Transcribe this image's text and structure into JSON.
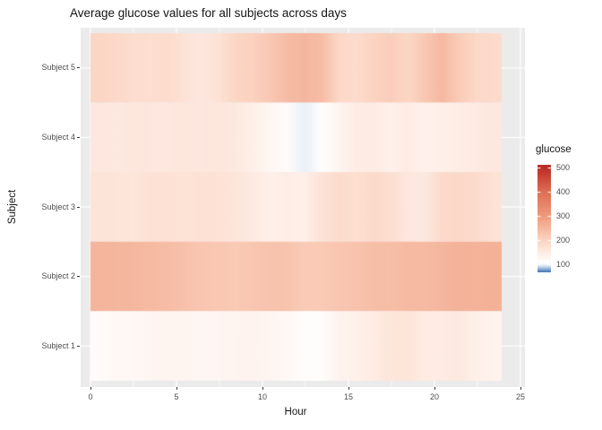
{
  "title": "Average glucose values for all subjects across days",
  "axes": {
    "x": {
      "label": "Hour",
      "ticks": [
        "0",
        "5",
        "10",
        "15",
        "20",
        "25"
      ],
      "tick_values": [
        0,
        5,
        10,
        15,
        20,
        25
      ],
      "minor_tick_values": [
        2.5,
        7.5,
        12.5,
        17.5,
        22.5
      ],
      "range": [
        0,
        25
      ]
    },
    "y": {
      "label": "Subject",
      "tick_labels_top_to_bottom": [
        "Subject 5",
        "Subject 4",
        "Subject 3",
        "Subject 2",
        "Subject 1"
      ]
    }
  },
  "legend": {
    "title": "glucose",
    "ticks": [
      "500",
      "400",
      "300",
      "200",
      "100"
    ],
    "tick_values": [
      500,
      400,
      300,
      200,
      100
    ],
    "bar_value_range": [
      65,
      510
    ]
  },
  "chart_data": {
    "type": "heatmap",
    "title": "Average glucose values for all subjects across days",
    "xlabel": "Hour",
    "ylabel": "Subject",
    "x_hours": [
      0,
      1,
      2,
      3,
      4,
      5,
      6,
      7,
      8,
      9,
      10,
      11,
      12,
      13,
      14,
      15,
      16,
      17,
      18,
      19,
      20,
      21,
      22,
      23
    ],
    "x_tile_span": [
      0,
      24
    ],
    "rows_top_to_bottom": [
      "Subject 5",
      "Subject 4",
      "Subject 3",
      "Subject 2",
      "Subject 1"
    ],
    "series": [
      {
        "name": "Subject 5",
        "values": [
          195,
          190,
          180,
          178,
          182,
          168,
          158,
          170,
          196,
          205,
          222,
          243,
          252,
          240,
          192,
          183,
          200,
          212,
          194,
          220,
          248,
          214,
          192,
          185
        ]
      },
      {
        "name": "Subject 4",
        "values": [
          158,
          155,
          160,
          158,
          156,
          160,
          158,
          162,
          155,
          140,
          125,
          115,
          98,
          110,
          128,
          148,
          150,
          138,
          148,
          136,
          140,
          146,
          152,
          158
        ]
      },
      {
        "name": "Subject 3",
        "values": [
          165,
          164,
          162,
          172,
          172,
          168,
          172,
          170,
          162,
          152,
          140,
          145,
          140,
          168,
          185,
          175,
          188,
          178,
          158,
          155,
          187,
          192,
          185,
          170
        ]
      },
      {
        "name": "Subject 2",
        "values": [
          255,
          252,
          250,
          245,
          240,
          232,
          225,
          220,
          218,
          224,
          230,
          228,
          215,
          218,
          225,
          230,
          238,
          237,
          245,
          244,
          252,
          258,
          257,
          260
        ]
      },
      {
        "name": "Subject 1",
        "values": [
          115,
          122,
          120,
          126,
          130,
          128,
          124,
          126,
          130,
          132,
          126,
          122,
          112,
          112,
          132,
          138,
          148,
          162,
          163,
          148,
          150,
          155,
          140,
          134
        ]
      }
    ],
    "color_scale": {
      "type": "diverging",
      "low": "#3E6CB0",
      "mid": "#FFFFFF",
      "high": "#BE2C26",
      "anchors": [
        [
          65,
          [
            62,
            108,
            176
          ]
        ],
        [
          75,
          [
            110,
            148,
            198
          ]
        ],
        [
          90,
          [
            200,
            218,
            236
          ]
        ],
        [
          100,
          [
            242,
            247,
            251
          ]
        ],
        [
          107,
          [
            255,
            255,
            255
          ]
        ],
        [
          200,
          [
            252,
            212,
            194
          ]
        ],
        [
          300,
          [
            239,
            154,
            124
          ]
        ],
        [
          400,
          [
            222,
            110,
            85
          ]
        ],
        [
          500,
          [
            190,
            44,
            38
          ]
        ]
      ],
      "legend_position": "right"
    },
    "panel_background": "#EBEBEB",
    "gridline_color": "#FFFFFF"
  },
  "colors": {
    "panel_bg": "#EBEBEB",
    "grid": "#FFFFFF",
    "tick_text": "#4D4D4D",
    "axis_title_text": "#141414",
    "tick_mark": "#343434"
  }
}
